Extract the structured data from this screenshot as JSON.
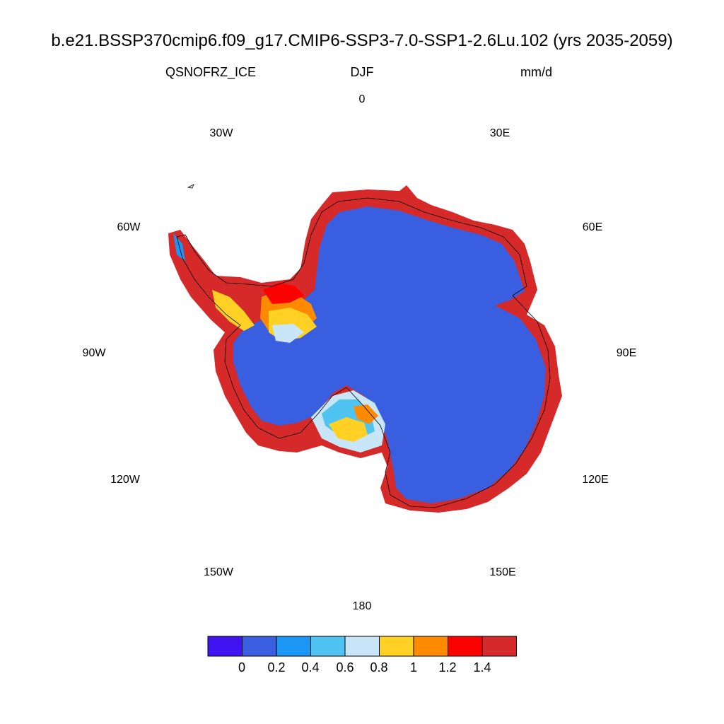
{
  "title": "b.e21.BSSP370cmip6.f09_g17.CMIP6-SSP3-7.0-SSP1-2.6Lu.102 (yrs 2035-2059)",
  "variable": "QSNOFRZ_ICE",
  "season": "DJF",
  "units": "mm/d",
  "longitude_labels": [
    "0",
    "30E",
    "60E",
    "90E",
    "120E",
    "150E",
    "180",
    "150W",
    "120W",
    "90W",
    "60W",
    "30W"
  ],
  "colorbar": {
    "colors": [
      "#3f14f0",
      "#3a5ee0",
      "#1b96f5",
      "#4fc3f2",
      "#c8e6f8",
      "#ffd125",
      "#ff8a00",
      "#ff0000",
      "#d62a2a"
    ],
    "labels": [
      "0",
      "0.2",
      "0.4",
      "0.6",
      "0.8",
      "1",
      "1.2",
      "1.4"
    ]
  },
  "chart_data": {
    "type": "heatmap",
    "projection": "south polar stereographic",
    "title": "b.e21.BSSP370cmip6.f09_g17.CMIP6-SSP3-7.0-SSP1-2.6Lu.102 (yrs 2035-2059)",
    "variable": "QSNOFRZ_ICE",
    "season": "DJF",
    "units": "mm/d",
    "levels": [
      0,
      0.2,
      0.4,
      0.6,
      0.8,
      1,
      1.2,
      1.4
    ],
    "interior_value_range": [
      0,
      0.2
    ],
    "coastal_value_range": [
      1.4,
      1.6
    ],
    "grid": "longitude labels every 30 degrees"
  }
}
